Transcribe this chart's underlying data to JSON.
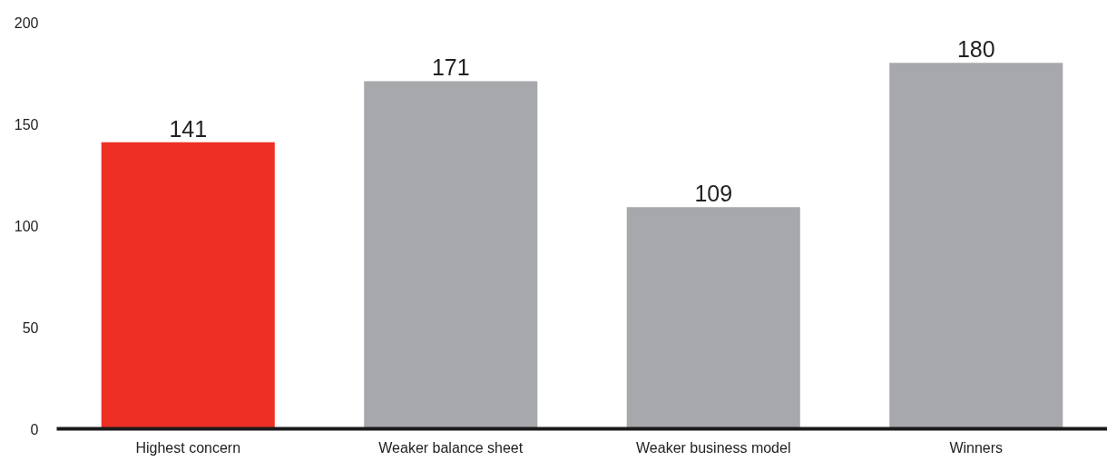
{
  "chart_data": {
    "type": "bar",
    "categories": [
      "Highest concern",
      "Weaker balance sheet",
      "Weaker business model",
      "Winners"
    ],
    "values": [
      141,
      171,
      109,
      180
    ],
    "colors": [
      "#ee3024",
      "#a7a8ab",
      "#a7a8ab",
      "#a7a8ab"
    ],
    "ylim": [
      0,
      200
    ],
    "yticks": [
      0,
      50,
      100,
      150,
      200
    ],
    "data_labels": true,
    "grid": false
  }
}
